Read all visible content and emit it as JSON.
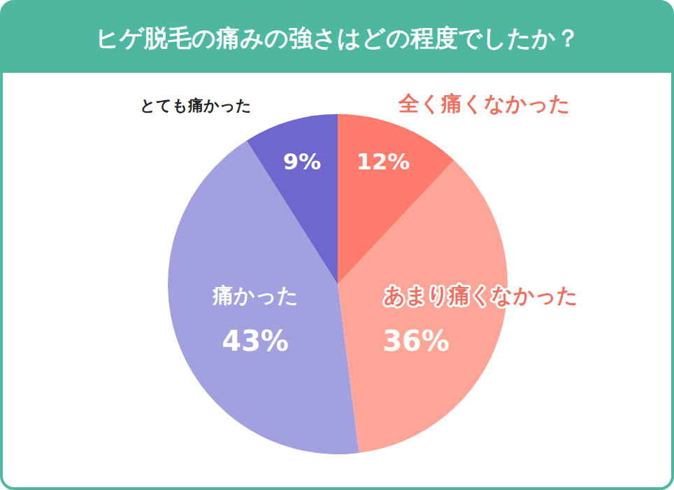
{
  "chart_data": {
    "type": "pie",
    "title": "ヒゲ脱毛の痛みの強さはどの程度でしたか？",
    "categories": [
      "全く痛くなかった",
      "あまり痛くなかった",
      "痛かった",
      "とても痛かった"
    ],
    "values": [
      12,
      36,
      43,
      9
    ],
    "value_labels": [
      "12%",
      "36%",
      "43%",
      "9%"
    ],
    "colors": [
      "#ff7b6c",
      "#ffa597",
      "#a3a0e0",
      "#6f67cd"
    ],
    "data_labels": true
  }
}
